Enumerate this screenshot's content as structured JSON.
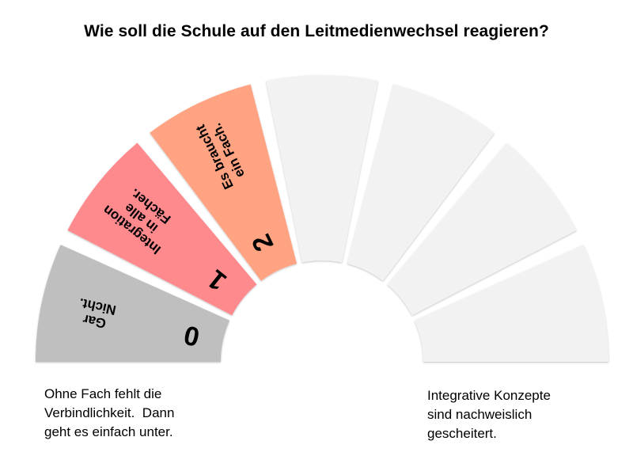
{
  "title": "Wie soll die Schule auf den Leitmedienwechsel reagieren?",
  "scale": {
    "segments": [
      {
        "index": 0,
        "number": "0",
        "lines": [
          "Gar",
          "Nicht."
        ],
        "color": "#bfbfbf"
      },
      {
        "index": 1,
        "number": "1",
        "lines": [
          "Integration",
          "in alle",
          "Fächer."
        ],
        "color": "#ff8a8e"
      },
      {
        "index": 2,
        "number": "2",
        "lines": [
          "Es braucht",
          "ein Fach."
        ],
        "color": "#ffa382"
      },
      {
        "index": 3,
        "number": "",
        "lines": [],
        "color": "#f2f2f2"
      },
      {
        "index": 4,
        "number": "",
        "lines": [],
        "color": "#f2f2f2"
      },
      {
        "index": 5,
        "number": "",
        "lines": [],
        "color": "#f2f2f2"
      },
      {
        "index": 6,
        "number": "",
        "lines": [],
        "color": "#f2f2f2"
      }
    ]
  },
  "notes": {
    "left": [
      "Ohne Fach fehlt die",
      "Verbindlichkeit.  Dann",
      "geht es einfach unter."
    ],
    "right": [
      "Integrative Konzepte",
      "sind nachweislich",
      "gescheitert."
    ]
  }
}
